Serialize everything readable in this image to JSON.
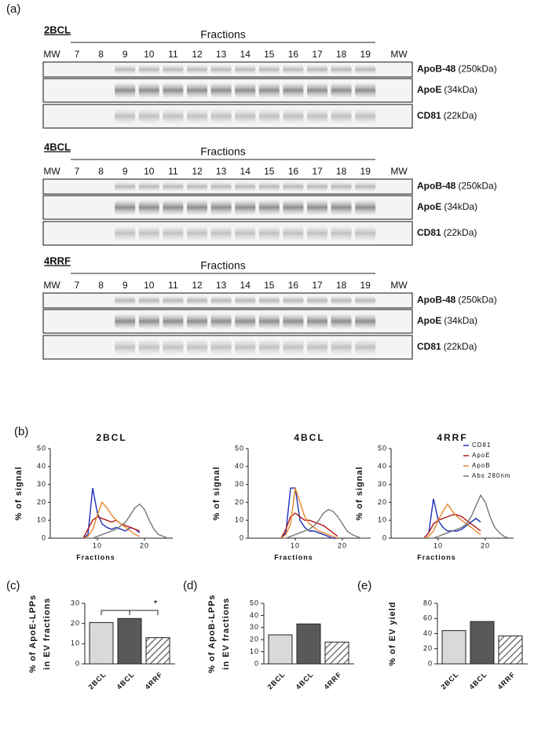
{
  "panel_labels": [
    "(a)",
    "(b)",
    "(c)",
    "(d)",
    "(e)"
  ],
  "blots": [
    {
      "title": "2BCL",
      "header": "Fractions",
      "lanes": [
        "MW",
        "7",
        "8",
        "9",
        "10",
        "11",
        "12",
        "13",
        "14",
        "15",
        "16",
        "17",
        "18",
        "19",
        "MW"
      ],
      "rows": [
        {
          "protein": "ApoB-48",
          "size": "(250kDa)"
        },
        {
          "protein": "ApoE",
          "size": "(34kDa)"
        },
        {
          "protein": "CD81",
          "size": "(22kDa)"
        }
      ]
    },
    {
      "title": "4BCL",
      "header": "Fractions",
      "lanes": [
        "MW",
        "7",
        "8",
        "9",
        "10",
        "11",
        "12",
        "13",
        "14",
        "15",
        "16",
        "17",
        "18",
        "19",
        "MW"
      ],
      "rows": [
        {
          "protein": "ApoB-48",
          "size": "(250kDa)"
        },
        {
          "protein": "ApoE",
          "size": "(34kDa)"
        },
        {
          "protein": "CD81",
          "size": "(22kDa)"
        }
      ]
    },
    {
      "title": "4RRF",
      "header": "Fractions",
      "lanes": [
        "MW",
        "7",
        "8",
        "9",
        "10",
        "11",
        "12",
        "13",
        "14",
        "15",
        "16",
        "17",
        "18",
        "19",
        "MW"
      ],
      "rows": [
        {
          "protein": "ApoB-48",
          "size": "(250kDa)"
        },
        {
          "protein": "ApoE",
          "size": "(34kDa)"
        },
        {
          "protein": "CD81",
          "size": "(22kDa)"
        }
      ]
    }
  ],
  "chart_data": [
    {
      "type": "line",
      "title": "2BCL",
      "xlabel": "Fractions",
      "ylabel": "% of signal",
      "xlim": [
        0,
        26
      ],
      "xticks": [
        10,
        20
      ],
      "ylim": [
        0,
        50
      ],
      "yticks": [
        0,
        10,
        20,
        30,
        40,
        50
      ],
      "series": [
        {
          "name": "CD81",
          "color": "#1f2fb5",
          "x": [
            7,
            8,
            9,
            10,
            11,
            12,
            13,
            14,
            15,
            16,
            17,
            18,
            19
          ],
          "values": [
            0,
            2,
            28,
            14,
            8,
            6,
            5,
            6,
            5,
            4,
            6,
            5,
            3
          ]
        },
        {
          "name": "ApoE",
          "color": "#b01818",
          "x": [
            7,
            8,
            9,
            10,
            11,
            12,
            13,
            14,
            15,
            16,
            17,
            18,
            19
          ],
          "values": [
            0,
            5,
            10,
            12,
            11,
            10,
            9,
            10,
            8,
            7,
            6,
            5,
            4
          ]
        },
        {
          "name": "ApoB",
          "color": "#e8862a",
          "x": [
            7,
            8,
            9,
            10,
            11,
            12,
            13,
            14,
            15,
            16,
            17,
            18,
            19
          ],
          "values": [
            0,
            1,
            5,
            13,
            20,
            17,
            13,
            10,
            8,
            6,
            4,
            2,
            1
          ]
        },
        {
          "name": "Abs 280nm",
          "color": "#777777",
          "x": [
            7,
            8,
            9,
            10,
            11,
            12,
            13,
            14,
            15,
            16,
            17,
            18,
            19,
            20,
            21,
            22,
            23,
            24,
            25
          ],
          "values": [
            0,
            0,
            0,
            1,
            2,
            3,
            4,
            5,
            7,
            9,
            13,
            17,
            19,
            16,
            10,
            5,
            2,
            1,
            0
          ]
        }
      ]
    },
    {
      "type": "line",
      "title": "4BCL",
      "xlabel": "Fractions",
      "ylabel": "% of signal",
      "xlim": [
        0,
        26
      ],
      "xticks": [
        10,
        20
      ],
      "ylim": [
        0,
        50
      ],
      "yticks": [
        0,
        10,
        20,
        30,
        40,
        50
      ],
      "series": [
        {
          "name": "CD81",
          "color": "#1f2fb5",
          "x": [
            7,
            8,
            9,
            10,
            11,
            12,
            13,
            14,
            15,
            16,
            17,
            18,
            19
          ],
          "values": [
            0,
            3,
            28,
            28,
            10,
            6,
            4,
            4,
            3,
            2,
            1,
            0,
            0
          ]
        },
        {
          "name": "ApoE",
          "color": "#b01818",
          "x": [
            7,
            8,
            9,
            10,
            11,
            12,
            13,
            14,
            15,
            16,
            17,
            18,
            19
          ],
          "values": [
            0,
            5,
            12,
            14,
            12,
            10,
            10,
            9,
            8,
            7,
            5,
            3,
            1
          ]
        },
        {
          "name": "ApoB",
          "color": "#e8862a",
          "x": [
            7,
            8,
            9,
            10,
            11,
            12,
            13,
            14,
            15,
            16,
            17,
            18,
            19
          ],
          "values": [
            0,
            2,
            8,
            28,
            20,
            12,
            8,
            6,
            4,
            3,
            2,
            1,
            0
          ]
        },
        {
          "name": "Abs 280nm",
          "color": "#777777",
          "x": [
            7,
            8,
            9,
            10,
            11,
            12,
            13,
            14,
            15,
            16,
            17,
            18,
            19,
            20,
            21,
            22,
            23,
            24,
            25
          ],
          "values": [
            0,
            0,
            1,
            2,
            3,
            4,
            5,
            7,
            10,
            14,
            16,
            15,
            12,
            8,
            4,
            2,
            1,
            0,
            0
          ]
        }
      ]
    },
    {
      "type": "line",
      "title": "4RRF",
      "xlabel": "Fractions",
      "ylabel": "% of signal",
      "xlim": [
        0,
        26
      ],
      "xticks": [
        10,
        20
      ],
      "ylim": [
        0,
        50
      ],
      "yticks": [
        0,
        10,
        20,
        30,
        40,
        50
      ],
      "legend": "upper right",
      "series": [
        {
          "name": "CD81",
          "color": "#1f2fb5",
          "x": [
            7,
            8,
            9,
            10,
            11,
            12,
            13,
            14,
            15,
            16,
            17,
            18,
            19
          ],
          "values": [
            0,
            3,
            22,
            10,
            6,
            4,
            4,
            4,
            5,
            7,
            9,
            11,
            9
          ]
        },
        {
          "name": "ApoE",
          "color": "#b01818",
          "x": [
            7,
            8,
            9,
            10,
            11,
            12,
            13,
            14,
            15,
            16,
            17,
            18,
            19
          ],
          "values": [
            0,
            3,
            8,
            10,
            11,
            12,
            13,
            13,
            12,
            10,
            8,
            6,
            4
          ]
        },
        {
          "name": "ApoB",
          "color": "#e8862a",
          "x": [
            7,
            8,
            9,
            10,
            11,
            12,
            13,
            14,
            15,
            16,
            17,
            18,
            19
          ],
          "values": [
            0,
            1,
            4,
            10,
            15,
            19,
            15,
            12,
            10,
            8,
            6,
            4,
            2
          ]
        },
        {
          "name": "Abs 280nm",
          "color": "#777777",
          "x": [
            7,
            8,
            9,
            10,
            11,
            12,
            13,
            14,
            15,
            16,
            17,
            18,
            19,
            20,
            21,
            22,
            23,
            24,
            25
          ],
          "values": [
            0,
            0,
            0,
            1,
            2,
            3,
            4,
            5,
            6,
            8,
            12,
            18,
            24,
            20,
            12,
            6,
            3,
            1,
            0
          ]
        }
      ]
    },
    {
      "type": "bar",
      "ylabel": [
        "% of ApoE-LPPs",
        "in EV fractions"
      ],
      "categories": [
        "2BCL",
        "4BCL",
        "4RRF"
      ],
      "values": [
        20.5,
        22.5,
        13
      ],
      "colors": [
        "#d9d9d9",
        "#595959",
        "#ffffff"
      ],
      "hatched": [
        false,
        false,
        true
      ],
      "ylim": [
        0,
        30
      ],
      "yticks": [
        0,
        10,
        20,
        30
      ],
      "annotation": "*"
    },
    {
      "type": "bar",
      "ylabel": [
        "% of ApoB-LPPs",
        "in EV fractions"
      ],
      "categories": [
        "2BCL",
        "4BCL",
        "4RRF"
      ],
      "values": [
        24,
        33,
        18
      ],
      "colors": [
        "#d9d9d9",
        "#595959",
        "#ffffff"
      ],
      "hatched": [
        false,
        false,
        true
      ],
      "ylim": [
        0,
        50
      ],
      "yticks": [
        0,
        10,
        20,
        30,
        40,
        50
      ]
    },
    {
      "type": "bar",
      "ylabel": [
        "% of EV yield"
      ],
      "categories": [
        "2BCL",
        "4BCL",
        "4RRF"
      ],
      "values": [
        44,
        56,
        37
      ],
      "colors": [
        "#d9d9d9",
        "#595959",
        "#ffffff"
      ],
      "hatched": [
        false,
        false,
        true
      ],
      "ylim": [
        0,
        80
      ],
      "yticks": [
        0,
        20,
        40,
        60,
        80
      ]
    }
  ]
}
